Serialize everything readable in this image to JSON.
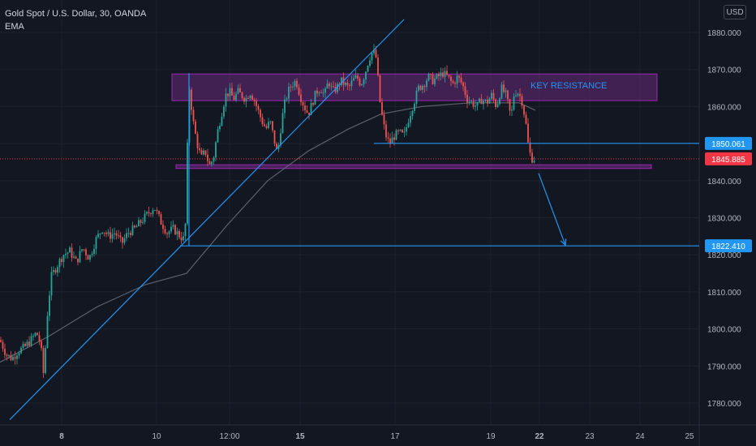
{
  "header": {
    "symbol": "Gold Spot / U.S. Dollar",
    "interval": "30",
    "exchange": "OANDA",
    "indicator": "EMA",
    "currency": "USD"
  },
  "annotation_text": "KEY RESISTANCE",
  "colors": {
    "background": "#131722",
    "grid": "#1e222d",
    "up": "#26a69a",
    "down": "#ef5350",
    "trendline": "#2196f3",
    "zone_fill": "#7b2d8e",
    "zone_border": "#9c27b0",
    "price_label": "#2196f3",
    "current_price": "#f23645",
    "ema": "#5d606b"
  },
  "chart_data": {
    "type": "candlestick",
    "title": "Gold Spot / U.S. Dollar, 30, OANDA",
    "ylim": [
      1775,
      1886
    ],
    "y_ticks": [
      1780,
      1790,
      1800,
      1810,
      1820,
      1830,
      1840,
      1850,
      1860,
      1870,
      1880
    ],
    "y_tick_labels": [
      "1780.000",
      "1790.000",
      "1800.000",
      "1810.000",
      "1820.000",
      "1830.000",
      "1840.000",
      "1850.000",
      "1860.000",
      "1870.000",
      "1880.000"
    ],
    "x_ticks": [
      "8",
      "10",
      "12:00",
      "15",
      "17",
      "19",
      "22",
      "23",
      "24",
      "25"
    ],
    "grid": true,
    "current_price": 1845.885,
    "price_labels": [
      1850.061,
      1845.885,
      1822.41
    ],
    "price_label_texts": [
      "1850.061",
      "1845.885",
      "1822.410"
    ],
    "price_path": [
      [
        0,
        1797
      ],
      [
        8,
        1793
      ],
      [
        15,
        1792
      ],
      [
        22,
        1794
      ],
      [
        30,
        1795
      ],
      [
        38,
        1797
      ],
      [
        45,
        1799
      ],
      [
        50,
        1796
      ],
      [
        54,
        1787
      ],
      [
        58,
        1803
      ],
      [
        63,
        1814
      ],
      [
        70,
        1817
      ],
      [
        78,
        1820
      ],
      [
        86,
        1821
      ],
      [
        94,
        1818
      ],
      [
        102,
        1822
      ],
      [
        110,
        1819
      ],
      [
        118,
        1824
      ],
      [
        126,
        1827
      ],
      [
        134,
        1825
      ],
      [
        142,
        1826
      ],
      [
        150,
        1823
      ],
      [
        158,
        1826
      ],
      [
        166,
        1827
      ],
      [
        174,
        1829
      ],
      [
        182,
        1831
      ],
      [
        190,
        1833
      ],
      [
        198,
        1829
      ],
      [
        206,
        1826
      ],
      [
        214,
        1827
      ],
      [
        222,
        1825
      ],
      [
        228,
        1824
      ],
      [
        233,
        1866
      ],
      [
        238,
        1856
      ],
      [
        243,
        1850
      ],
      [
        248,
        1846
      ],
      [
        253,
        1848
      ],
      [
        258,
        1844
      ],
      [
        263,
        1846
      ],
      [
        268,
        1853
      ],
      [
        273,
        1858
      ],
      [
        278,
        1863
      ],
      [
        283,
        1864
      ],
      [
        288,
        1862
      ],
      [
        293,
        1864
      ],
      [
        298,
        1863
      ],
      [
        303,
        1862
      ],
      [
        308,
        1864
      ],
      [
        313,
        1862
      ],
      [
        318,
        1859
      ],
      [
        323,
        1856
      ],
      [
        328,
        1854
      ],
      [
        333,
        1856
      ],
      [
        338,
        1851
      ],
      [
        342,
        1847
      ],
      [
        346,
        1854
      ],
      [
        350,
        1860
      ],
      [
        355,
        1864
      ],
      [
        360,
        1866
      ],
      [
        365,
        1867
      ],
      [
        370,
        1863
      ],
      [
        375,
        1860
      ],
      [
        380,
        1858
      ],
      [
        385,
        1861
      ],
      [
        390,
        1864
      ],
      [
        395,
        1865
      ],
      [
        400,
        1863
      ],
      [
        405,
        1867
      ],
      [
        410,
        1864
      ],
      [
        415,
        1865
      ],
      [
        420,
        1867
      ],
      [
        425,
        1866
      ],
      [
        430,
        1865
      ],
      [
        435,
        1867
      ],
      [
        440,
        1868
      ],
      [
        445,
        1866
      ],
      [
        450,
        1869
      ],
      [
        455,
        1873
      ],
      [
        460,
        1875
      ],
      [
        464,
        1873
      ],
      [
        468,
        1862
      ],
      [
        472,
        1856
      ],
      [
        476,
        1852
      ],
      [
        480,
        1850
      ],
      [
        486,
        1852
      ],
      [
        492,
        1853
      ],
      [
        498,
        1852
      ],
      [
        504,
        1857
      ],
      [
        510,
        1861
      ],
      [
        516,
        1865
      ],
      [
        522,
        1866
      ],
      [
        528,
        1868
      ],
      [
        534,
        1867
      ],
      [
        540,
        1868
      ],
      [
        546,
        1869
      ],
      [
        552,
        1868
      ],
      [
        558,
        1866
      ],
      [
        564,
        1868
      ],
      [
        570,
        1866
      ],
      [
        576,
        1862
      ],
      [
        582,
        1861
      ],
      [
        588,
        1860
      ],
      [
        594,
        1862
      ],
      [
        600,
        1861
      ],
      [
        606,
        1863
      ],
      [
        612,
        1860
      ],
      [
        618,
        1865
      ],
      [
        624,
        1863
      ],
      [
        630,
        1857
      ],
      [
        634,
        1864
      ],
      [
        638,
        1864
      ],
      [
        643,
        1862
      ],
      [
        648,
        1856
      ],
      [
        652,
        1848
      ],
      [
        656,
        1846
      ],
      [
        660,
        1846
      ]
    ],
    "ema_path": [
      [
        0,
        1791
      ],
      [
        60,
        1798
      ],
      [
        120,
        1806
      ],
      [
        180,
        1812
      ],
      [
        230,
        1815
      ],
      [
        280,
        1828
      ],
      [
        330,
        1840
      ],
      [
        380,
        1848
      ],
      [
        430,
        1854
      ],
      [
        470,
        1858
      ],
      [
        520,
        1860
      ],
      [
        580,
        1861
      ],
      [
        640,
        1861
      ],
      [
        660,
        1859
      ]
    ],
    "resistance_zone": {
      "x_start": 212,
      "x_end": 810,
      "y_low": 1861.6,
      "y_high": 1868.8
    },
    "support_zone": {
      "x_start": 217,
      "x_end": 803,
      "y_low": 1843.3,
      "y_high": 1844.3
    },
    "trendline": {
      "x1": 12,
      "y1": 1775.5,
      "x2": 498,
      "y2": 1883.5
    },
    "vertical_line": {
      "x": 233,
      "y1": 1822.4,
      "y2": 1869
    },
    "hlines": [
      {
        "x_start": 461,
        "y": 1850.061
      },
      {
        "x_start": 222,
        "y": 1822.41
      }
    ],
    "projection_arrow": {
      "x1": 664,
      "y1": 1842,
      "x2": 697,
      "y2": 1822.6
    }
  }
}
